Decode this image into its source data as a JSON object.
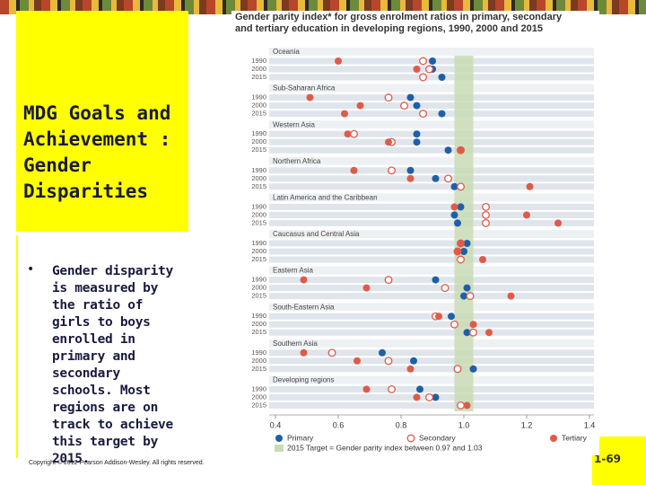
{
  "slide": {
    "title": "MDG Goals and Achievement : Gender Disparities",
    "bullet": "Gender disparity is measured by the ratio of girls to boys enrolled in primary and secondary schools. Most regions are on track to achieve this target by 2015.",
    "copyright": "Copyright © 2012 Pearson Addison-Wesley. All rights reserved.",
    "page": "1-69"
  },
  "chart_data": {
    "type": "dot",
    "title": "Gender parity index* for gross enrolment ratios in primary, secondary and tertiary education in developing regions, 1990, 2000 and 2015",
    "categories": [
      "Oceania",
      "Sub-Saharan Africa",
      "Western Asia",
      "Northern Africa",
      "Latin America and the Caribbean",
      "Caucasus and Central Asia",
      "Eastern Asia",
      "South-Eastern Asia",
      "Southern Asia",
      "Developing regions"
    ],
    "years": [
      "1990",
      "2000",
      "2015"
    ],
    "series": [
      {
        "name": "Primary",
        "color": "#1f5fa8",
        "marker": "filled",
        "values": [
          [
            0.9,
            0.9,
            0.93
          ],
          [
            0.83,
            0.85,
            0.93
          ],
          [
            0.85,
            0.85,
            0.95
          ],
          [
            0.83,
            0.91,
            0.97
          ],
          [
            0.99,
            0.97,
            0.98
          ],
          [
            1.01,
            1.0,
            0.99
          ],
          [
            0.91,
            1.01,
            1.0
          ],
          [
            0.96,
            0.97,
            1.01
          ],
          [
            0.74,
            0.84,
            1.03
          ],
          [
            0.86,
            0.91,
            0.99
          ]
        ]
      },
      {
        "name": "Secondary",
        "color": "#e05a4a",
        "marker": "open",
        "values": [
          [
            0.87,
            0.89,
            0.87
          ],
          [
            0.76,
            0.81,
            0.87
          ],
          [
            0.65,
            0.77,
            0.99
          ],
          [
            0.77,
            0.95,
            0.99
          ],
          [
            1.07,
            1.07,
            1.07
          ],
          [
            0.99,
            0.98,
            0.99
          ],
          [
            0.76,
            0.94,
            1.02
          ],
          [
            0.91,
            0.97,
            1.03
          ],
          [
            0.58,
            0.76,
            0.98
          ],
          [
            0.77,
            0.89,
            0.99
          ]
        ]
      },
      {
        "name": "Tertiary",
        "color": "#e05a4a",
        "marker": "filled",
        "values": [
          [
            0.6,
            0.85,
            null
          ],
          [
            0.51,
            0.67,
            0.62
          ],
          [
            0.63,
            0.76,
            0.99
          ],
          [
            0.65,
            0.83,
            1.21
          ],
          [
            0.97,
            1.2,
            1.3
          ],
          [
            0.99,
            0.98,
            1.06
          ],
          [
            0.49,
            0.69,
            1.15
          ],
          [
            0.92,
            1.03,
            1.08
          ],
          [
            0.49,
            0.66,
            0.83
          ],
          [
            0.69,
            0.85,
            1.01
          ]
        ]
      }
    ],
    "xlim": [
      0.4,
      1.4
    ],
    "xticks": [
      0.4,
      0.6,
      0.8,
      {
        "value": 1,
        "label": "1.0"
      },
      1.2,
      1.4
    ],
    "target": [
      0.97,
      1.03
    ],
    "target_color": "#c9dcb5",
    "target_label": "2015 Target = Gender parity index between 0.97 and 1.03"
  }
}
